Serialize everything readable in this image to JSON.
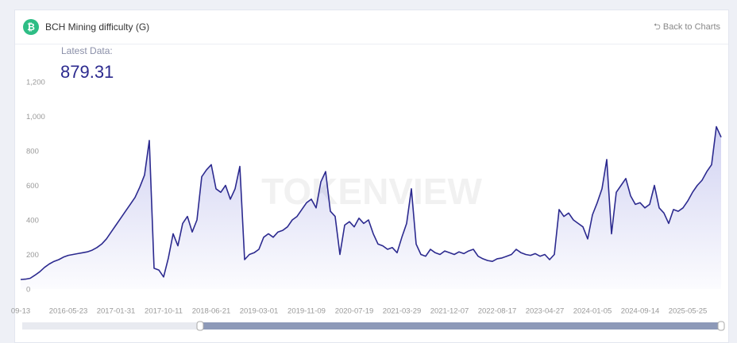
{
  "header": {
    "title": "BCH Mining difficulty (G)",
    "back_link": "Back to Charts"
  },
  "latest": {
    "label": "Latest Data:",
    "value": "879.31"
  },
  "chart_data": {
    "type": "area",
    "watermark": "TOKENVIEW",
    "color": "#2c2a8f",
    "values": [
      55,
      57,
      62,
      80,
      100,
      125,
      145,
      160,
      170,
      185,
      195,
      200,
      205,
      210,
      215,
      225,
      240,
      260,
      290,
      330,
      370,
      410,
      450,
      490,
      530,
      590,
      660,
      860,
      120,
      110,
      70,
      180,
      320,
      250,
      380,
      420,
      330,
      400,
      650,
      690,
      720,
      580,
      560,
      600,
      520,
      580,
      710,
      170,
      200,
      210,
      230,
      300,
      320,
      300,
      330,
      340,
      360,
      400,
      420,
      460,
      500,
      520,
      470,
      620,
      680,
      450,
      420,
      200,
      370,
      390,
      360,
      410,
      380,
      400,
      320,
      260,
      250,
      230,
      240,
      210,
      300,
      380,
      580,
      260,
      200,
      190,
      230,
      210,
      200,
      220,
      210,
      200,
      215,
      205,
      220,
      230,
      190,
      175,
      165,
      160,
      175,
      180,
      190,
      200,
      230,
      210,
      200,
      195,
      205,
      190,
      200,
      170,
      200,
      460,
      420,
      440,
      400,
      380,
      360,
      290,
      430,
      500,
      580,
      750,
      320,
      560,
      600,
      640,
      540,
      490,
      500,
      470,
      490,
      600,
      470,
      440,
      380,
      460,
      450,
      470,
      510,
      560,
      600,
      630,
      680,
      720,
      940,
      879.31
    ],
    "xlim": [
      0,
      147
    ],
    "xticks": [
      {
        "value": 0,
        "label": "09-13"
      },
      {
        "value": 10,
        "label": "2016-05-23"
      },
      {
        "value": 20,
        "label": "2017-01-31"
      },
      {
        "value": 30,
        "label": "2017-10-11"
      },
      {
        "value": 40,
        "label": "2018-06-21"
      },
      {
        "value": 50,
        "label": "2019-03-01"
      },
      {
        "value": 60,
        "label": "2019-11-09"
      },
      {
        "value": 70,
        "label": "2020-07-19"
      },
      {
        "value": 80,
        "label": "2021-03-29"
      },
      {
        "value": 90,
        "label": "2021-12-07"
      },
      {
        "value": 100,
        "label": "2022-08-17"
      },
      {
        "value": 110,
        "label": "2023-04-27"
      },
      {
        "value": 120,
        "label": "2024-01-05"
      },
      {
        "value": 130,
        "label": "2024-09-14"
      },
      {
        "value": 140,
        "label": "2025-05-25"
      }
    ],
    "ylim": [
      0,
      1200
    ],
    "yticks": [
      0,
      200,
      400,
      600,
      800,
      {
        "value": 1000,
        "label": "1,000"
      },
      {
        "value": 1200,
        "label": "1,200"
      }
    ]
  }
}
